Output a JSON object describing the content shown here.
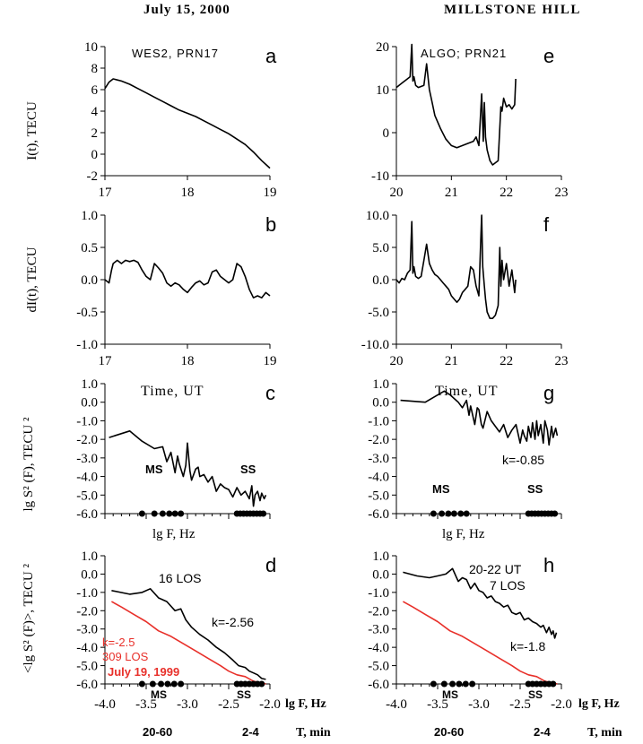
{
  "figure": {
    "date": "July 15, 2000",
    "site": "MILLSTONE HILL",
    "bottom": {
      "xaxis_label": "lg F, Hz",
      "t_label": "T, min",
      "t_ranges": [
        "20-60",
        "2-4"
      ]
    }
  },
  "chart_data": [
    {
      "id": "a",
      "type": "line",
      "letter": "a",
      "annotation": "WES2, PRN17",
      "ylabel": "I(t), TECU",
      "xlim": [
        17,
        19
      ],
      "ylim": [
        -2,
        10
      ],
      "xticks": [
        "17",
        "18",
        "19"
      ],
      "yticks": [
        "-2",
        "0",
        "2",
        "4",
        "6",
        "8",
        "10"
      ],
      "series": [
        {
          "color": "#000000",
          "x": [
            17.0,
            17.05,
            17.1,
            17.15,
            17.2,
            17.3,
            17.4,
            17.5,
            17.6,
            17.7,
            17.8,
            17.9,
            18.0,
            18.1,
            18.2,
            18.3,
            18.4,
            18.5,
            18.6,
            18.7,
            18.8,
            18.9,
            19.0
          ],
          "y": [
            6.1,
            6.7,
            7.0,
            6.9,
            6.8,
            6.5,
            6.1,
            5.7,
            5.3,
            4.9,
            4.5,
            4.1,
            3.8,
            3.5,
            3.1,
            2.7,
            2.3,
            1.9,
            1.4,
            0.9,
            0.2,
            -0.6,
            -1.3
          ]
        }
      ]
    },
    {
      "id": "b",
      "type": "line",
      "letter": "b",
      "ylabel": "dI(t), TECU",
      "xlim": [
        17,
        19
      ],
      "ylim": [
        -1.0,
        1.0
      ],
      "xticks": [
        "17",
        "18",
        "19"
      ],
      "yticks": [
        "-1.0",
        "-0.5",
        "0.0",
        "0.5",
        "1.0"
      ],
      "series": [
        {
          "color": "#000000",
          "x": [
            17.0,
            17.05,
            17.08,
            17.1,
            17.15,
            17.2,
            17.25,
            17.3,
            17.35,
            17.4,
            17.45,
            17.5,
            17.55,
            17.6,
            17.65,
            17.7,
            17.75,
            17.8,
            17.85,
            17.9,
            17.95,
            18.0,
            18.05,
            18.1,
            18.15,
            18.2,
            18.25,
            18.3,
            18.35,
            18.4,
            18.45,
            18.5,
            18.55,
            18.6,
            18.65,
            18.7,
            18.75,
            18.8,
            18.85,
            18.9,
            18.95,
            19.0
          ],
          "y": [
            0.0,
            -0.05,
            0.15,
            0.25,
            0.3,
            0.25,
            0.3,
            0.28,
            0.3,
            0.27,
            0.15,
            0.05,
            0.0,
            0.25,
            0.18,
            0.1,
            -0.05,
            -0.1,
            -0.05,
            -0.08,
            -0.15,
            -0.2,
            -0.12,
            -0.05,
            -0.02,
            -0.08,
            -0.05,
            0.12,
            0.15,
            0.05,
            0.0,
            -0.05,
            0.0,
            0.25,
            0.2,
            0.05,
            -0.15,
            -0.28,
            -0.25,
            -0.28,
            -0.2,
            -0.25
          ]
        }
      ]
    },
    {
      "id": "c",
      "type": "line",
      "letter": "c",
      "time_label": "Time, UT",
      "ylabel": "lg S² (F), TECU ²",
      "xlabel": "lg F, Hz",
      "xlim": [
        -4.0,
        -2.0
      ],
      "ylim": [
        -6.0,
        1.0
      ],
      "yticks": [
        "-6.0",
        "-5.0",
        "-4.0",
        "-3.0",
        "-2.0",
        "-1.0",
        "0.0",
        "1.0"
      ],
      "ms_label": "MS",
      "ss_label": "SS",
      "series": [
        {
          "color": "#000000",
          "x": [
            -3.95,
            -3.7,
            -3.55,
            -3.4,
            -3.3,
            -3.25,
            -3.2,
            -3.15,
            -3.12,
            -3.1,
            -3.05,
            -3.02,
            -3.0,
            -2.97,
            -2.95,
            -2.9,
            -2.87,
            -2.85,
            -2.8,
            -2.75,
            -2.7,
            -2.65,
            -2.6,
            -2.55,
            -2.5,
            -2.45,
            -2.4,
            -2.35,
            -2.3,
            -2.25,
            -2.22,
            -2.2,
            -2.18,
            -2.15,
            -2.12,
            -2.1,
            -2.07,
            -2.05
          ],
          "y": [
            -1.9,
            -1.55,
            -2.1,
            -2.5,
            -2.4,
            -3.2,
            -2.7,
            -3.8,
            -2.9,
            -3.3,
            -4.0,
            -3.4,
            -2.2,
            -3.7,
            -4.2,
            -3.6,
            -3.5,
            -4.0,
            -3.9,
            -4.3,
            -4.0,
            -4.8,
            -4.4,
            -4.6,
            -4.7,
            -5.1,
            -4.6,
            -5.0,
            -4.8,
            -5.2,
            -4.5,
            -5.6,
            -5.0,
            -4.8,
            -5.3,
            -4.9,
            -5.2,
            -5.0
          ]
        }
      ],
      "dots_ms": [
        -3.55,
        -3.4,
        -3.3,
        -3.22,
        -3.15,
        -3.08
      ],
      "dots_ss": [
        -2.4,
        -2.36,
        -2.32,
        -2.28,
        -2.24,
        -2.2,
        -2.16,
        -2.12,
        -2.08
      ]
    },
    {
      "id": "d",
      "type": "line",
      "letter": "d",
      "ylabel": "<lg S² (F)>, TECU ²",
      "xlim": [
        -4.0,
        -2.0
      ],
      "ylim": [
        -6.0,
        1.0
      ],
      "xticks": [
        "-4.0",
        "-3.5",
        "-3.0",
        "-2.5",
        "-2.0"
      ],
      "yticks": [
        "-6.0",
        "-5.0",
        "-4.0",
        "-3.0",
        "-2.0",
        "-1.0",
        "0.0",
        "1.0"
      ],
      "annotation_los": "16 LOS",
      "k_label": "k=-2.56",
      "red_k": "k=-2.5",
      "red_los": "309 LOS",
      "red_date": "July 19, 1999",
      "ms_label": "MS",
      "ss_label": "SS",
      "series": [
        {
          "color": "#000000",
          "x": [
            -3.92,
            -3.7,
            -3.55,
            -3.45,
            -3.35,
            -3.25,
            -3.15,
            -3.08,
            -3.02,
            -2.95,
            -2.85,
            -2.75,
            -2.65,
            -2.55,
            -2.45,
            -2.38,
            -2.3,
            -2.25,
            -2.2,
            -2.15,
            -2.1,
            -2.05
          ],
          "y": [
            -0.9,
            -1.1,
            -1.0,
            -0.8,
            -1.3,
            -1.5,
            -2.0,
            -1.9,
            -2.5,
            -2.9,
            -3.3,
            -3.6,
            -4.0,
            -4.3,
            -4.7,
            -5.0,
            -5.1,
            -5.3,
            -5.4,
            -5.5,
            -5.7,
            -5.75
          ]
        },
        {
          "color": "#e8302a",
          "x": [
            -3.92,
            -3.8,
            -3.65,
            -3.5,
            -3.35,
            -3.2,
            -3.05,
            -2.9,
            -2.75,
            -2.6,
            -2.5,
            -2.4,
            -2.3,
            -2.2,
            -2.1,
            -2.05
          ],
          "y": [
            -1.5,
            -1.8,
            -2.2,
            -2.6,
            -3.1,
            -3.4,
            -3.8,
            -4.2,
            -4.6,
            -5.0,
            -5.3,
            -5.5,
            -5.6,
            -5.85,
            -5.95,
            -6.0
          ]
        }
      ],
      "dots_ms": [
        -3.55,
        -3.42,
        -3.32,
        -3.24,
        -3.16,
        -3.08
      ],
      "dots_ss": [
        -2.4,
        -2.35,
        -2.3,
        -2.25,
        -2.2,
        -2.15,
        -2.1
      ]
    },
    {
      "id": "e",
      "type": "line",
      "letter": "e",
      "annotation": "ALGO; PRN21",
      "xlim": [
        20,
        23
      ],
      "ylim": [
        -10,
        20
      ],
      "xticks": [
        "20",
        "21",
        "22",
        "23"
      ],
      "yticks": [
        "-10",
        "0",
        "10",
        "20"
      ],
      "series": [
        {
          "color": "#000000",
          "x": [
            20.0,
            20.1,
            20.2,
            20.25,
            20.28,
            20.3,
            20.32,
            20.35,
            20.4,
            20.5,
            20.55,
            20.6,
            20.65,
            20.7,
            20.8,
            20.9,
            21.0,
            21.1,
            21.2,
            21.3,
            21.4,
            21.45,
            21.5,
            21.55,
            21.58,
            21.6,
            21.62,
            21.65,
            21.7,
            21.75,
            21.8,
            21.85,
            21.9,
            21.92,
            21.95,
            22.0,
            22.05,
            22.1,
            22.15,
            22.17
          ],
          "y": [
            10.5,
            11.5,
            12.5,
            13.0,
            20.5,
            12.0,
            13.0,
            11.0,
            10.5,
            11.0,
            16.0,
            10.0,
            7.0,
            4.0,
            1.0,
            -1.5,
            -3.0,
            -3.5,
            -3.0,
            -2.5,
            -2.0,
            -1.0,
            -3.0,
            9.0,
            -2.0,
            7.0,
            -1.0,
            -4.0,
            -6.5,
            -7.5,
            -7.0,
            -6.5,
            6.0,
            5.0,
            8.0,
            6.0,
            6.5,
            5.5,
            6.5,
            12.5
          ]
        }
      ]
    },
    {
      "id": "f",
      "type": "line",
      "letter": "f",
      "xlim": [
        20,
        23
      ],
      "ylim": [
        -10.0,
        10.0
      ],
      "xticks": [
        "20",
        "21",
        "22",
        "23"
      ],
      "yticks": [
        "-10.0",
        "-5.0",
        "0.0",
        "5.0",
        "10.0"
      ],
      "series": [
        {
          "color": "#000000",
          "x": [
            20.0,
            20.05,
            20.1,
            20.15,
            20.2,
            20.25,
            20.28,
            20.3,
            20.32,
            20.35,
            20.4,
            20.45,
            20.5,
            20.55,
            20.6,
            20.65,
            20.7,
            20.75,
            20.8,
            20.85,
            20.9,
            20.95,
            21.0,
            21.05,
            21.1,
            21.15,
            21.2,
            21.25,
            21.3,
            21.35,
            21.4,
            21.45,
            21.5,
            21.53,
            21.55,
            21.57,
            21.6,
            21.62,
            21.65,
            21.7,
            21.75,
            21.8,
            21.85,
            21.88,
            21.9,
            21.92,
            21.95,
            22.0,
            22.05,
            22.1,
            22.15,
            22.17
          ],
          "y": [
            0.0,
            -0.5,
            0.2,
            0.0,
            1.0,
            1.5,
            9.0,
            1.0,
            2.0,
            0.5,
            0.2,
            0.5,
            3.0,
            5.5,
            2.5,
            1.5,
            0.8,
            0.5,
            0.0,
            -0.5,
            -1.0,
            -1.5,
            -2.5,
            -3.0,
            -3.5,
            -3.0,
            -2.0,
            -1.5,
            -1.0,
            2.0,
            1.5,
            -1.0,
            -2.5,
            5.0,
            10.0,
            2.0,
            -1.0,
            -3.0,
            -5.0,
            -6.0,
            -6.0,
            -5.5,
            -4.0,
            5.0,
            -1.0,
            3.0,
            0.0,
            2.5,
            -1.0,
            1.5,
            -2.0,
            0.0
          ]
        }
      ]
    },
    {
      "id": "g",
      "type": "line",
      "letter": "g",
      "time_label": "Time, UT",
      "xlabel": "lg F, Hz",
      "xlim": [
        -4.0,
        -2.0
      ],
      "ylim": [
        -6.0,
        1.0
      ],
      "yticks": [
        "-6.0",
        "-5.0",
        "-4.0",
        "-3.0",
        "-2.0",
        "-1.0",
        "0.0",
        "1.0"
      ],
      "k_label": "k=-0.85",
      "ms_label": "MS",
      "ss_label": "SS",
      "series": [
        {
          "color": "#000000",
          "x": [
            -3.95,
            -3.65,
            -3.42,
            -3.35,
            -3.25,
            -3.2,
            -3.15,
            -3.12,
            -3.1,
            -3.05,
            -3.02,
            -3.0,
            -2.97,
            -2.95,
            -2.9,
            -2.85,
            -2.8,
            -2.75,
            -2.7,
            -2.65,
            -2.6,
            -2.55,
            -2.5,
            -2.47,
            -2.45,
            -2.42,
            -2.4,
            -2.37,
            -2.35,
            -2.32,
            -2.3,
            -2.28,
            -2.25,
            -2.22,
            -2.2,
            -2.17,
            -2.15,
            -2.12,
            -2.1,
            -2.07,
            -2.05
          ],
          "y": [
            0.1,
            0.0,
            0.6,
            0.4,
            0.0,
            -0.3,
            0.1,
            -0.7,
            -0.2,
            -1.2,
            -0.3,
            -0.4,
            -1.2,
            -1.4,
            -0.5,
            -1.0,
            -1.3,
            -1.6,
            -1.2,
            -1.9,
            -1.5,
            -1.2,
            -2.2,
            -1.5,
            -1.8,
            -2.1,
            -1.3,
            -1.9,
            -1.1,
            -2.0,
            -1.0,
            -1.8,
            -1.2,
            -2.2,
            -1.0,
            -1.5,
            -2.3,
            -1.3,
            -1.9,
            -1.4,
            -1.8
          ]
        }
      ],
      "dots_ms": [
        -3.55,
        -3.45,
        -3.37,
        -3.3,
        -3.22,
        -3.15
      ],
      "dots_ss": [
        -2.4,
        -2.36,
        -2.32,
        -2.28,
        -2.24,
        -2.2,
        -2.16,
        -2.12,
        -2.08
      ]
    },
    {
      "id": "h",
      "type": "line",
      "letter": "h",
      "xlim": [
        -4.0,
        -2.0
      ],
      "ylim": [
        -6.0,
        1.0
      ],
      "xticks": [
        "-4.0",
        "-3.5",
        "-3.0",
        "-2.5",
        "-2.0"
      ],
      "yticks": [
        "-6.0",
        "-5.0",
        "-4.0",
        "-3.0",
        "-2.0",
        "-1.0",
        "0.0",
        "1.0"
      ],
      "annotation_ut": "20-22 UT",
      "annotation_los": "7 LOS",
      "k_label": "k=-1.8",
      "ms_label": "MS",
      "ss_label": "SS",
      "series": [
        {
          "color": "#000000",
          "x": [
            -3.92,
            -3.75,
            -3.6,
            -3.5,
            -3.4,
            -3.32,
            -3.25,
            -3.2,
            -3.15,
            -3.1,
            -3.05,
            -3.0,
            -2.95,
            -2.9,
            -2.85,
            -2.8,
            -2.75,
            -2.7,
            -2.65,
            -2.6,
            -2.55,
            -2.5,
            -2.45,
            -2.4,
            -2.35,
            -2.3,
            -2.25,
            -2.22,
            -2.2,
            -2.18,
            -2.15,
            -2.12,
            -2.1,
            -2.08,
            -2.06
          ],
          "y": [
            0.1,
            -0.1,
            -0.2,
            -0.1,
            0.0,
            0.3,
            -0.4,
            -0.2,
            -0.3,
            -0.8,
            -0.5,
            -0.9,
            -1.0,
            -1.3,
            -1.2,
            -1.5,
            -1.6,
            -1.8,
            -1.7,
            -2.1,
            -2.2,
            -2.1,
            -2.5,
            -2.4,
            -2.6,
            -2.7,
            -2.9,
            -2.8,
            -3.0,
            -3.2,
            -2.9,
            -3.3,
            -3.1,
            -3.5,
            -3.2
          ]
        },
        {
          "color": "#e8302a",
          "x": [
            -3.92,
            -3.8,
            -3.65,
            -3.5,
            -3.35,
            -3.2,
            -3.05,
            -2.9,
            -2.75,
            -2.6,
            -2.5,
            -2.4,
            -2.3,
            -2.2,
            -2.1,
            -2.05
          ],
          "y": [
            -1.5,
            -1.8,
            -2.2,
            -2.6,
            -3.1,
            -3.4,
            -3.8,
            -4.2,
            -4.6,
            -5.0,
            -5.3,
            -5.5,
            -5.6,
            -5.85,
            -5.95,
            -6.0
          ]
        }
      ],
      "dots_ms": [
        -3.55,
        -3.42,
        -3.32,
        -3.24,
        -3.16,
        -3.08
      ],
      "dots_ss": [
        -2.4,
        -2.35,
        -2.3,
        -2.25,
        -2.2,
        -2.15,
        -2.1
      ]
    }
  ]
}
